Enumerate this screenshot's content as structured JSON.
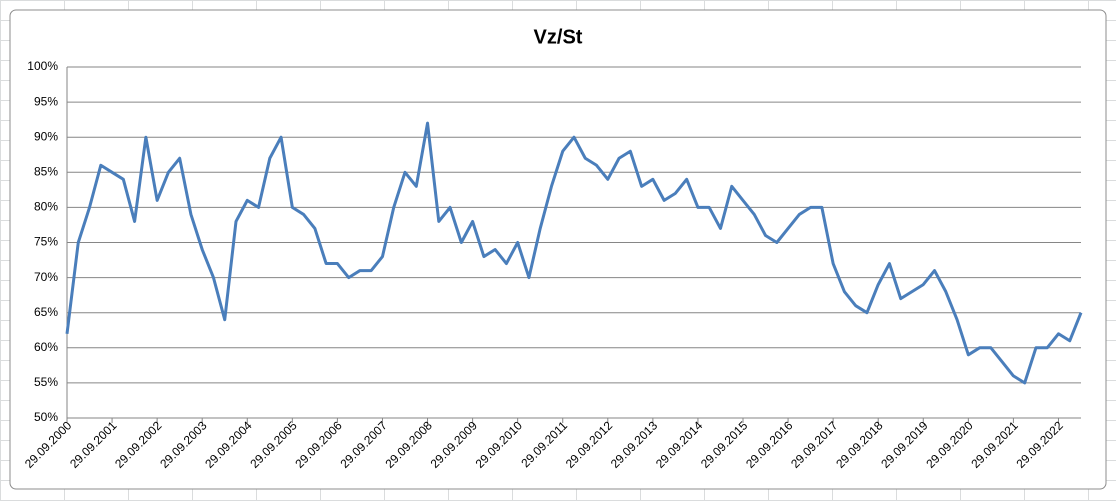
{
  "chart_data": {
    "type": "line",
    "title": "Vz/St",
    "categories": [
      "29.09.2000",
      null,
      null,
      null,
      "29.09.2001",
      null,
      null,
      null,
      "29.09.2002",
      null,
      null,
      null,
      "29.09.2003",
      null,
      null,
      null,
      "29.09.2004",
      null,
      null,
      null,
      "29.09.2005",
      null,
      null,
      null,
      "29.09.2006",
      null,
      null,
      null,
      "29.09.2007",
      null,
      null,
      null,
      "29.09.2008",
      null,
      null,
      null,
      "29.09.2009",
      null,
      null,
      null,
      "29.09.2010",
      null,
      null,
      null,
      "29.09.2011",
      null,
      null,
      null,
      "29.09.2012",
      null,
      null,
      null,
      "29.09.2013",
      null,
      null,
      null,
      "29.09.2014",
      null,
      null,
      null,
      "29.09.2015",
      null,
      null,
      null,
      "29.09.2016",
      null,
      null,
      null,
      "29.09.2017",
      null,
      null,
      null,
      "29.09.2018",
      null,
      null,
      null,
      "29.09.2019",
      null,
      null,
      null,
      "29.09.2020",
      null,
      null,
      null,
      "29.09.2021",
      null,
      null,
      null,
      "29.09.2022",
      null,
      null
    ],
    "series": [
      {
        "color": "#4a7ebb",
        "values": [
          62,
          75,
          80,
          86,
          85,
          84,
          78,
          90,
          81,
          85,
          87,
          79,
          74,
          70,
          64,
          78,
          81,
          80,
          87,
          90,
          80,
          79,
          77,
          72,
          72,
          70,
          71,
          71,
          73,
          80,
          85,
          83,
          92,
          78,
          80,
          75,
          78,
          73,
          74,
          72,
          75,
          70,
          77,
          83,
          88,
          90,
          87,
          86,
          84,
          87,
          88,
          83,
          84,
          81,
          82,
          84,
          80,
          80,
          77,
          83,
          81,
          79,
          76,
          75,
          77,
          79,
          80,
          80,
          72,
          68,
          66,
          65,
          69,
          72,
          67,
          68,
          69,
          71,
          68,
          64,
          59,
          60,
          60,
          58,
          56,
          55,
          60,
          60,
          62,
          61,
          65
        ]
      }
    ],
    "ylim": [
      50,
      100
    ],
    "yticks": [
      {
        "value": 50,
        "label": "50%"
      },
      {
        "value": 55,
        "label": "55%"
      },
      {
        "value": 60,
        "label": "60%"
      },
      {
        "value": 65,
        "label": "65%"
      },
      {
        "value": 70,
        "label": "70%"
      },
      {
        "value": 75,
        "label": "75%"
      },
      {
        "value": 80,
        "label": "80%"
      },
      {
        "value": 85,
        "label": "85%"
      },
      {
        "value": 90,
        "label": "90%"
      },
      {
        "value": 95,
        "label": "95%"
      },
      {
        "value": 100,
        "label": "100%"
      }
    ],
    "grid": true
  }
}
